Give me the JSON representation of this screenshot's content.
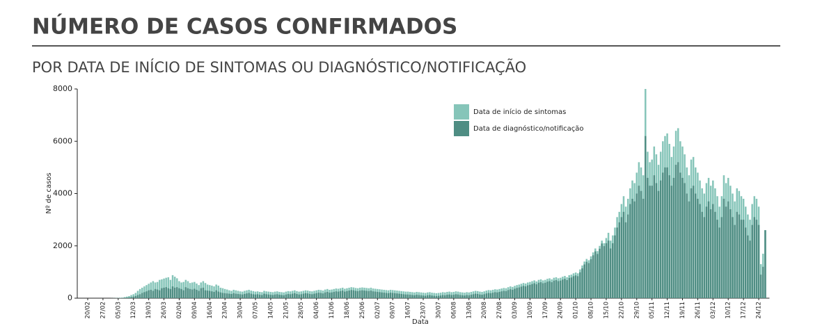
{
  "chart_data": {
    "type": "bar",
    "title": "NÚMERO DE CASOS CONFIRMADOS",
    "subtitle": "POR DATA DE INÍCIO DE SINTOMAS OU DIAGNÓSTICO/NOTIFICAÇÃO",
    "x_label": "Data",
    "y_label": "Nº de casos",
    "ylim": [
      0,
      8000
    ],
    "yticks": [
      0,
      2000,
      4000,
      6000,
      8000
    ],
    "legend": "top-right",
    "categories": [
      "20/02",
      null,
      null,
      null,
      null,
      null,
      null,
      "27/02",
      null,
      null,
      null,
      null,
      null,
      null,
      "05/03",
      null,
      null,
      null,
      null,
      null,
      null,
      "12/03",
      null,
      null,
      null,
      null,
      null,
      null,
      "19/03",
      null,
      null,
      null,
      null,
      null,
      null,
      "26/03",
      null,
      null,
      null,
      null,
      null,
      null,
      "02/04",
      null,
      null,
      null,
      null,
      null,
      null,
      "09/04",
      null,
      null,
      null,
      null,
      null,
      null,
      "16/04",
      null,
      null,
      null,
      null,
      null,
      null,
      "23/04",
      null,
      null,
      null,
      null,
      null,
      null,
      "30/04",
      null,
      null,
      null,
      null,
      null,
      null,
      "07/05",
      null,
      null,
      null,
      null,
      null,
      null,
      "14/05",
      null,
      null,
      null,
      null,
      null,
      null,
      "21/05",
      null,
      null,
      null,
      null,
      null,
      null,
      "28/05",
      null,
      null,
      null,
      null,
      null,
      null,
      "04/06",
      null,
      null,
      null,
      null,
      null,
      null,
      "11/06",
      null,
      null,
      null,
      null,
      null,
      null,
      "18/06",
      null,
      null,
      null,
      null,
      null,
      null,
      "25/06",
      null,
      null,
      null,
      null,
      null,
      null,
      "02/07",
      null,
      null,
      null,
      null,
      null,
      null,
      "09/07",
      null,
      null,
      null,
      null,
      null,
      null,
      "16/07",
      null,
      null,
      null,
      null,
      null,
      null,
      "23/07",
      null,
      null,
      null,
      null,
      null,
      null,
      "30/07",
      null,
      null,
      null,
      null,
      null,
      null,
      "06/08",
      null,
      null,
      null,
      null,
      null,
      null,
      "13/08",
      null,
      null,
      null,
      null,
      null,
      null,
      "20/08",
      null,
      null,
      null,
      null,
      null,
      null,
      "27/08",
      null,
      null,
      null,
      null,
      null,
      null,
      "03/09",
      null,
      null,
      null,
      null,
      null,
      null,
      "10/09",
      null,
      null,
      null,
      null,
      null,
      null,
      "17/09",
      null,
      null,
      null,
      null,
      null,
      null,
      "24/09",
      null,
      null,
      null,
      null,
      null,
      null,
      "01/10",
      null,
      null,
      null,
      null,
      null,
      null,
      "08/10",
      null,
      null,
      null,
      null,
      null,
      null,
      "15/10",
      null,
      null,
      null,
      null,
      null,
      null,
      "22/10",
      null,
      null,
      null,
      null,
      null,
      null,
      "29/10",
      null,
      null,
      null,
      null,
      null,
      null,
      "05/11",
      null,
      null,
      null,
      null,
      null,
      null,
      "12/11",
      null,
      null,
      null,
      null,
      null,
      null,
      "19/11",
      null,
      null,
      null,
      null,
      null,
      null,
      "26/11",
      null,
      null,
      null,
      null,
      null,
      null,
      "03/12",
      null,
      null,
      null,
      null,
      null,
      null,
      "10/12",
      null,
      null,
      null,
      null,
      null,
      null,
      "17/12",
      null,
      null,
      null,
      null,
      null,
      null,
      "24/12",
      null,
      null,
      null
    ],
    "series": [
      {
        "name": "Data de início de sintomas",
        "color": "#86c5b9",
        "values": [
          0,
          0,
          0,
          0,
          0,
          0,
          0,
          0,
          0,
          0,
          0,
          2,
          5,
          8,
          10,
          15,
          20,
          40,
          60,
          80,
          120,
          150,
          200,
          280,
          350,
          400,
          450,
          500,
          550,
          600,
          650,
          600,
          620,
          700,
          720,
          750,
          780,
          800,
          700,
          880,
          820,
          760,
          650,
          600,
          620,
          700,
          650,
          580,
          600,
          620,
          560,
          500,
          600,
          650,
          580,
          520,
          500,
          480,
          450,
          520,
          480,
          400,
          380,
          350,
          330,
          300,
          280,
          320,
          300,
          280,
          260,
          250,
          280,
          300,
          320,
          290,
          270,
          250,
          260,
          240,
          230,
          280,
          260,
          250,
          240,
          230,
          250,
          260,
          240,
          230,
          220,
          250,
          270,
          260,
          280,
          300,
          270,
          250,
          260,
          280,
          300,
          290,
          270,
          260,
          280,
          300,
          320,
          310,
          290,
          330,
          350,
          320,
          330,
          350,
          370,
          360,
          380,
          400,
          360,
          380,
          400,
          420,
          410,
          390,
          380,
          400,
          410,
          400,
          390,
          380,
          400,
          370,
          360,
          350,
          340,
          330,
          320,
          310,
          300,
          320,
          310,
          300,
          290,
          280,
          270,
          260,
          250,
          250,
          240,
          230,
          220,
          240,
          230,
          220,
          210,
          200,
          220,
          230,
          210,
          200,
          190,
          200,
          210,
          230,
          220,
          240,
          250,
          230,
          240,
          260,
          250,
          230,
          220,
          210,
          230,
          220,
          240,
          260,
          280,
          270,
          250,
          240,
          260,
          290,
          310,
          300,
          320,
          340,
          330,
          350,
          370,
          390,
          380,
          420,
          450,
          430,
          470,
          500,
          520,
          550,
          580,
          560,
          600,
          620,
          650,
          680,
          640,
          700,
          720,
          680,
          700,
          740,
          760,
          720,
          780,
          800,
          760,
          780,
          820,
          850,
          800,
          880,
          900,
          950,
          980,
          950,
          1100,
          1250,
          1400,
          1500,
          1450,
          1600,
          1750,
          1900,
          1800,
          2000,
          2200,
          2100,
          2300,
          2500,
          2200,
          2400,
          2700,
          3100,
          3300,
          3600,
          3900,
          3500,
          3800,
          4200,
          4500,
          4400,
          4800,
          5200,
          5000,
          4700,
          8000,
          5600,
          5200,
          5300,
          5800,
          5500,
          5100,
          5600,
          6000,
          6200,
          6300,
          5900,
          5400,
          5800,
          6400,
          6500,
          6000,
          5800,
          5500,
          5000,
          4700,
          5300,
          5400,
          5000,
          4800,
          4500,
          4200,
          4000,
          4400,
          4600,
          4300,
          4500,
          4200,
          3900,
          3500,
          3900,
          4700,
          4400,
          4600,
          4300,
          4000,
          3700,
          4200,
          4100,
          3900,
          3800,
          3500,
          3200,
          3000,
          3600,
          3900,
          3800,
          3500,
          1300,
          1700,
          2600
        ]
      },
      {
        "name": "Data de diagnóstico/notificação",
        "color": "#4f8d83",
        "values": [
          0,
          0,
          0,
          0,
          0,
          0,
          0,
          0,
          0,
          0,
          0,
          0,
          0,
          2,
          5,
          8,
          10,
          15,
          20,
          30,
          40,
          60,
          80,
          120,
          150,
          200,
          230,
          260,
          300,
          320,
          280,
          350,
          330,
          300,
          380,
          400,
          420,
          380,
          350,
          450,
          400,
          420,
          380,
          350,
          300,
          420,
          380,
          350,
          330,
          360,
          320,
          280,
          380,
          400,
          300,
          290,
          280,
          260,
          240,
          300,
          250,
          220,
          200,
          190,
          180,
          170,
          160,
          190,
          170,
          160,
          150,
          140,
          160,
          180,
          200,
          170,
          150,
          140,
          150,
          130,
          120,
          170,
          150,
          140,
          130,
          120,
          140,
          150,
          130,
          120,
          110,
          140,
          160,
          150,
          170,
          190,
          160,
          140,
          150,
          170,
          190,
          180,
          160,
          150,
          170,
          190,
          210,
          200,
          180,
          220,
          240,
          210,
          220,
          240,
          260,
          250,
          270,
          290,
          250,
          270,
          290,
          310,
          300,
          280,
          270,
          290,
          300,
          290,
          280,
          270,
          290,
          260,
          250,
          240,
          230,
          220,
          210,
          200,
          190,
          210,
          200,
          190,
          180,
          170,
          160,
          150,
          140,
          140,
          130,
          120,
          110,
          130,
          120,
          110,
          100,
          90,
          110,
          120,
          100,
          90,
          80,
          90,
          100,
          120,
          110,
          130,
          140,
          120,
          130,
          150,
          140,
          120,
          110,
          100,
          120,
          110,
          130,
          150,
          170,
          160,
          140,
          130,
          150,
          180,
          200,
          190,
          210,
          230,
          220,
          240,
          260,
          280,
          270,
          310,
          340,
          320,
          360,
          390,
          410,
          440,
          470,
          450,
          490,
          510,
          540,
          570,
          530,
          590,
          610,
          570,
          590,
          630,
          650,
          610,
          670,
          690,
          650,
          670,
          710,
          740,
          690,
          770,
          790,
          840,
          870,
          840,
          990,
          1140,
          1290,
          1390,
          1340,
          1490,
          1640,
          1790,
          1690,
          1890,
          2090,
          1990,
          2100,
          2200,
          1900,
          2100,
          2400,
          2700,
          2900,
          3100,
          3300,
          2900,
          3200,
          3600,
          3800,
          3700,
          4000,
          4300,
          4100,
          3800,
          6200,
          4600,
          4300,
          4300,
          4700,
          4400,
          4100,
          4500,
          4800,
          5000,
          5000,
          4700,
          4300,
          4600,
          5100,
          5200,
          4800,
          4600,
          4400,
          4000,
          3700,
          4200,
          4300,
          4000,
          3800,
          3600,
          3300,
          3100,
          3500,
          3700,
          3400,
          3600,
          3300,
          3000,
          2700,
          3100,
          3800,
          3500,
          3700,
          3400,
          3100,
          2800,
          3300,
          3200,
          3000,
          3000,
          2700,
          2400,
          2200,
          2800,
          3100,
          3000,
          2800,
          900,
          1200,
          2600
        ]
      }
    ]
  }
}
